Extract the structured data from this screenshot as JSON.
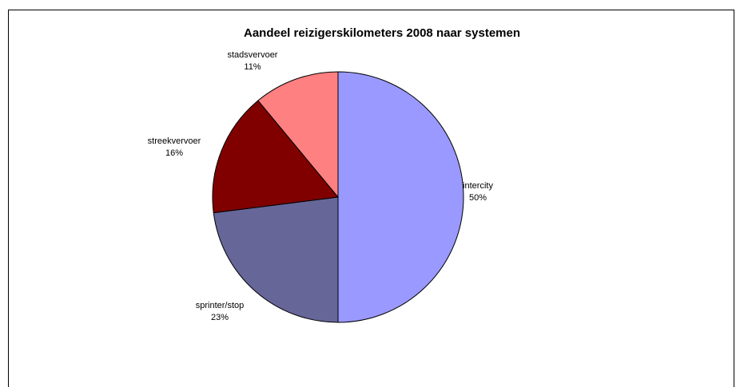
{
  "chart_data": {
    "type": "pie",
    "title": "Aandeel reizigerskilometers 2008 naar systemen",
    "slices": [
      {
        "label": "intercity",
        "value": 50,
        "value_label": "50%",
        "color": "#9999FF"
      },
      {
        "label": "sprinter/stop",
        "value": 23,
        "value_label": "23%",
        "color": "#666699"
      },
      {
        "label": "streekvervoer",
        "value": 16,
        "value_label": "16%",
        "color": "#800000"
      },
      {
        "label": "stadsvervoer",
        "value": 11,
        "value_label": "11%",
        "color": "#FF8080"
      }
    ],
    "start_angle_deg": 0,
    "direction": "clockwise",
    "legend": "none",
    "data_labels": "outside"
  }
}
